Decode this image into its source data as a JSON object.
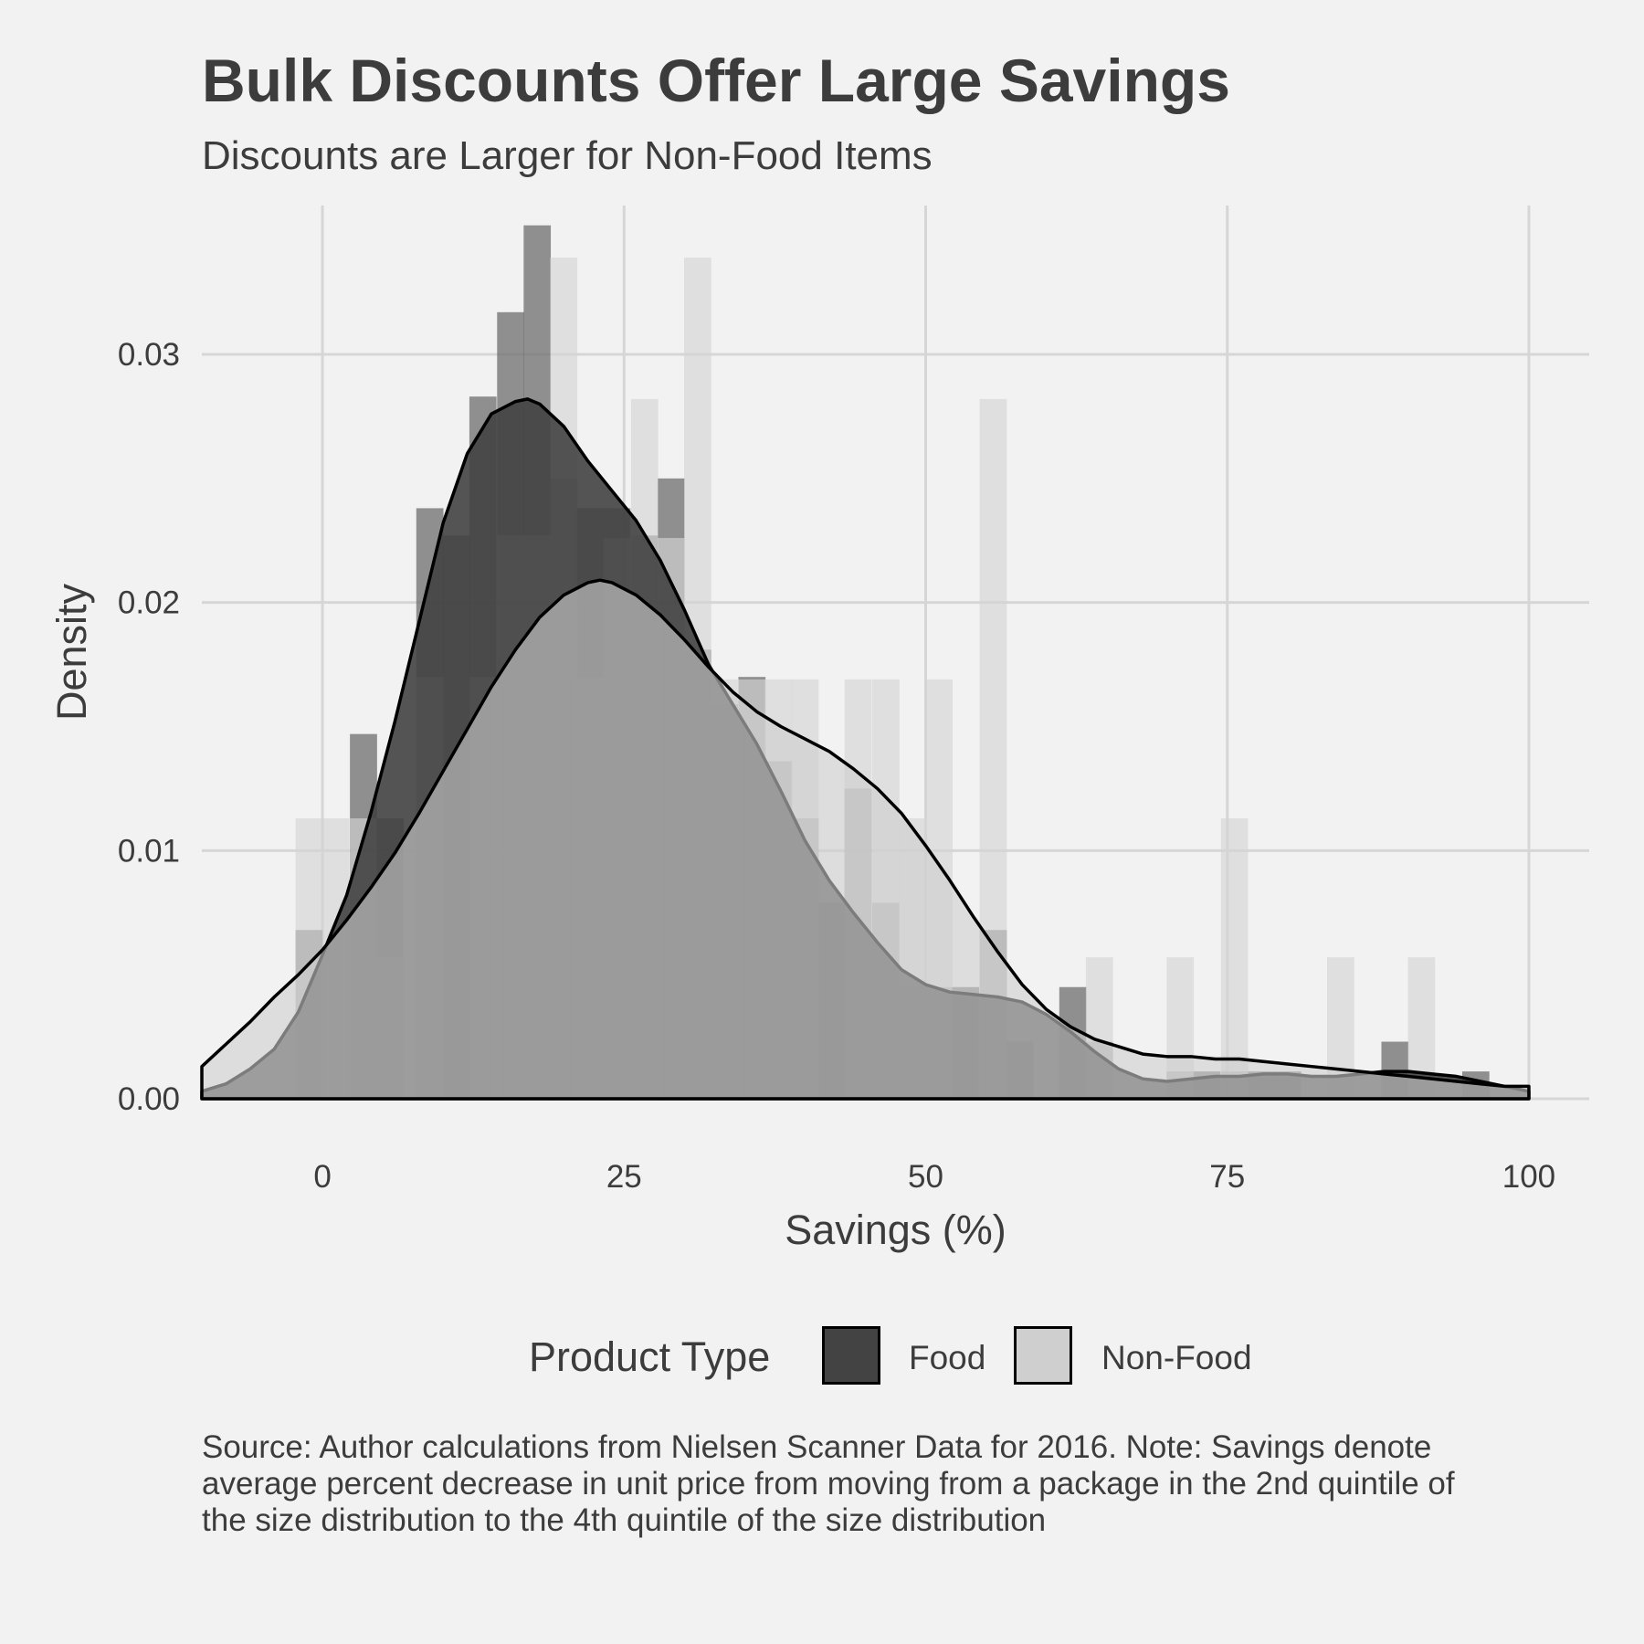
{
  "title": "Bulk Discounts Offer Large Savings",
  "subtitle": "Discounts are Larger for Non-Food Items",
  "caption": "Source: Author calculations from Nielsen Scanner Data for 2016. Note: Savings denote average percent decrease in unit price from moving from a package in the 2nd quintile of the size distribution to the 4th quintile of the size distribution",
  "legend": {
    "title": "Product Type",
    "items": [
      {
        "label": "Food",
        "color": "#434343"
      },
      {
        "label": "Non-Food",
        "color": "#cfcfcf"
      }
    ]
  },
  "chart_data": {
    "type": "area",
    "xlabel": "Savings (%)",
    "ylabel": "Density",
    "xlim": [
      -10,
      105
    ],
    "ylim": [
      0,
      0.036
    ],
    "x_ticks": [
      0,
      25,
      50,
      75,
      100
    ],
    "x_tick_labels": [
      "0",
      "25",
      "50",
      "75",
      "100"
    ],
    "y_ticks": [
      0,
      0.01,
      0.02,
      0.03
    ],
    "y_tick_labels": [
      "0.00",
      "0.01",
      "0.02",
      "0.03"
    ],
    "grid": true,
    "legend_position": "bottom",
    "histogram_bin_width": 2.25,
    "histograms": [
      {
        "name": "Food",
        "bins": [
          {
            "x": -1.1,
            "y": 0.0068
          },
          {
            "x": 3.4,
            "y": 0.0147
          },
          {
            "x": 5.6,
            "y": 0.0113
          },
          {
            "x": 8.9,
            "y": 0.0238
          },
          {
            "x": 11.1,
            "y": 0.0227
          },
          {
            "x": 13.3,
            "y": 0.0283
          },
          {
            "x": 15.6,
            "y": 0.0317
          },
          {
            "x": 17.8,
            "y": 0.0352
          },
          {
            "x": 20.0,
            "y": 0.025
          },
          {
            "x": 22.2,
            "y": 0.0238
          },
          {
            "x": 24.4,
            "y": 0.0238
          },
          {
            "x": 26.7,
            "y": 0.0227
          },
          {
            "x": 28.9,
            "y": 0.025
          },
          {
            "x": 31.1,
            "y": 0.0181
          },
          {
            "x": 33.3,
            "y": 0.0159
          },
          {
            "x": 35.6,
            "y": 0.017
          },
          {
            "x": 37.8,
            "y": 0.0136
          },
          {
            "x": 40.0,
            "y": 0.0113
          },
          {
            "x": 42.2,
            "y": 0.0079
          },
          {
            "x": 44.4,
            "y": 0.0125
          },
          {
            "x": 46.7,
            "y": 0.0079
          },
          {
            "x": 48.9,
            "y": 0.0045
          },
          {
            "x": 51.1,
            "y": 0.0045
          },
          {
            "x": 53.3,
            "y": 0.0045
          },
          {
            "x": 55.6,
            "y": 0.0068
          },
          {
            "x": 57.8,
            "y": 0.0023
          },
          {
            "x": 62.2,
            "y": 0.0045
          },
          {
            "x": 64.4,
            "y": 0.0023
          },
          {
            "x": 71.1,
            "y": 0.0011
          },
          {
            "x": 73.3,
            "y": 0.0011
          },
          {
            "x": 75.6,
            "y": 0.0011
          },
          {
            "x": 77.8,
            "y": 0.0011
          },
          {
            "x": 80.0,
            "y": 0.0011
          },
          {
            "x": 88.9,
            "y": 0.0023
          },
          {
            "x": 95.6,
            "y": 0.0011
          }
        ]
      },
      {
        "name": "Non-Food",
        "bins": [
          {
            "x": -1.1,
            "y": 0.0113
          },
          {
            "x": 1.1,
            "y": 0.0113
          },
          {
            "x": 3.4,
            "y": 0.0113
          },
          {
            "x": 5.6,
            "y": 0.0057
          },
          {
            "x": 8.9,
            "y": 0.017
          },
          {
            "x": 13.3,
            "y": 0.017
          },
          {
            "x": 15.6,
            "y": 0.0227
          },
          {
            "x": 17.8,
            "y": 0.0227
          },
          {
            "x": 20.0,
            "y": 0.0339
          },
          {
            "x": 22.2,
            "y": 0.017
          },
          {
            "x": 24.4,
            "y": 0.0226
          },
          {
            "x": 26.7,
            "y": 0.0282
          },
          {
            "x": 28.9,
            "y": 0.0226
          },
          {
            "x": 31.1,
            "y": 0.0339
          },
          {
            "x": 33.3,
            "y": 0.0169
          },
          {
            "x": 35.6,
            "y": 0.0169
          },
          {
            "x": 37.8,
            "y": 0.0169
          },
          {
            "x": 40.0,
            "y": 0.0169
          },
          {
            "x": 44.4,
            "y": 0.0169
          },
          {
            "x": 46.7,
            "y": 0.0169
          },
          {
            "x": 48.9,
            "y": 0.0113
          },
          {
            "x": 51.1,
            "y": 0.0169
          },
          {
            "x": 55.6,
            "y": 0.0282
          },
          {
            "x": 64.4,
            "y": 0.0057
          },
          {
            "x": 71.1,
            "y": 0.0057
          },
          {
            "x": 75.6,
            "y": 0.0113
          },
          {
            "x": 84.4,
            "y": 0.0057
          },
          {
            "x": 91.1,
            "y": 0.0057
          }
        ]
      }
    ],
    "series": [
      {
        "name": "Food",
        "x": [
          -10,
          -8,
          -6,
          -4,
          -2,
          0,
          2,
          4,
          6,
          8,
          10,
          12,
          14,
          16,
          17,
          18,
          20,
          22,
          24,
          26,
          28,
          30,
          32,
          34,
          36,
          38,
          40,
          42,
          44,
          46,
          48,
          50,
          52,
          54,
          56,
          58,
          60,
          62,
          64,
          66,
          68,
          70,
          72,
          74,
          76,
          78,
          80,
          82,
          84,
          86,
          88,
          90,
          92,
          94,
          96,
          98,
          100
        ],
        "y": [
          0.0003,
          0.0006,
          0.0012,
          0.002,
          0.0035,
          0.0058,
          0.0082,
          0.0115,
          0.0152,
          0.0192,
          0.0232,
          0.026,
          0.0276,
          0.0281,
          0.0282,
          0.028,
          0.0271,
          0.0257,
          0.0245,
          0.0233,
          0.0217,
          0.0197,
          0.0175,
          0.0159,
          0.0143,
          0.0124,
          0.0104,
          0.0088,
          0.0075,
          0.0063,
          0.0052,
          0.0046,
          0.0043,
          0.0042,
          0.0041,
          0.0039,
          0.0034,
          0.0027,
          0.0019,
          0.0012,
          0.0008,
          0.0007,
          0.0008,
          0.0009,
          0.0009,
          0.001,
          0.001,
          0.0009,
          0.0009,
          0.001,
          0.0011,
          0.0011,
          0.001,
          0.0009,
          0.0007,
          0.0005,
          0.0003
        ]
      },
      {
        "name": "Non-Food",
        "x": [
          -10,
          -8,
          -6,
          -4,
          -2,
          0,
          2,
          4,
          6,
          8,
          10,
          12,
          14,
          16,
          18,
          20,
          22,
          23,
          24,
          26,
          28,
          30,
          32,
          34,
          36,
          38,
          40,
          42,
          44,
          46,
          48,
          50,
          52,
          54,
          56,
          58,
          60,
          62,
          64,
          66,
          68,
          70,
          72,
          74,
          76,
          78,
          80,
          82,
          84,
          86,
          88,
          90,
          92,
          94,
          96,
          98,
          100
        ],
        "y": [
          0.0013,
          0.0022,
          0.0031,
          0.0041,
          0.005,
          0.006,
          0.0072,
          0.0085,
          0.0099,
          0.0115,
          0.0132,
          0.0149,
          0.0166,
          0.0181,
          0.0194,
          0.0203,
          0.0208,
          0.0209,
          0.0208,
          0.0203,
          0.0195,
          0.0185,
          0.0174,
          0.0164,
          0.0156,
          0.015,
          0.0145,
          0.014,
          0.0133,
          0.0125,
          0.0115,
          0.0102,
          0.0088,
          0.0073,
          0.0059,
          0.0046,
          0.0036,
          0.0029,
          0.0024,
          0.0021,
          0.0018,
          0.0017,
          0.0017,
          0.0016,
          0.0016,
          0.0015,
          0.0014,
          0.0013,
          0.0012,
          0.0011,
          0.001,
          0.0009,
          0.0008,
          0.0007,
          0.0006,
          0.0005,
          0.0005
        ]
      }
    ]
  }
}
